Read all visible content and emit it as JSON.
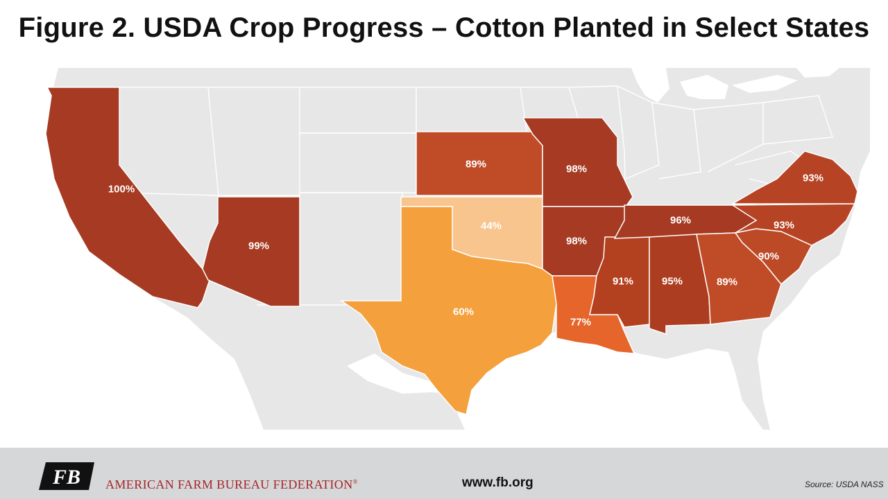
{
  "title": "Figure 2. USDA Crop Progress – Cotton Planted in Select States",
  "map": {
    "metric": "Cotton planted (%)",
    "color_scale": {
      "low": "#f8c58e",
      "mid": "#f4a03c",
      "mid_high": "#e5652a",
      "high": "#a63a22"
    },
    "background_land": "#e7e7e8",
    "water": "#ffffff",
    "states": [
      {
        "id": "CA",
        "value": "100%",
        "color": "#a63a22"
      },
      {
        "id": "AZ",
        "value": "99%",
        "color": "#a63a22"
      },
      {
        "id": "KS",
        "value": "89%",
        "color": "#c04c27"
      },
      {
        "id": "OK",
        "value": "44%",
        "color": "#f8c58e"
      },
      {
        "id": "TX",
        "value": "60%",
        "color": "#f4a03c"
      },
      {
        "id": "MO",
        "value": "98%",
        "color": "#a63a22"
      },
      {
        "id": "AR",
        "value": "98%",
        "color": "#a63a22"
      },
      {
        "id": "LA",
        "value": "77%",
        "color": "#e5652a"
      },
      {
        "id": "MS",
        "value": "91%",
        "color": "#b3401f"
      },
      {
        "id": "AL",
        "value": "95%",
        "color": "#ad3d20"
      },
      {
        "id": "TN",
        "value": "96%",
        "color": "#a63a22"
      },
      {
        "id": "GA",
        "value": "89%",
        "color": "#c04c27"
      },
      {
        "id": "SC",
        "value": "90%",
        "color": "#bd4a26"
      },
      {
        "id": "NC",
        "value": "93%",
        "color": "#b64424"
      },
      {
        "id": "VA",
        "value": "93%",
        "color": "#b64424"
      }
    ]
  },
  "footer": {
    "logo_text": "FB",
    "org_name": "AMERICAN FARM BUREAU FEDERATION",
    "org_mark": "®",
    "url": "www.fb.org",
    "source": "Source:  USDA  NASS"
  }
}
